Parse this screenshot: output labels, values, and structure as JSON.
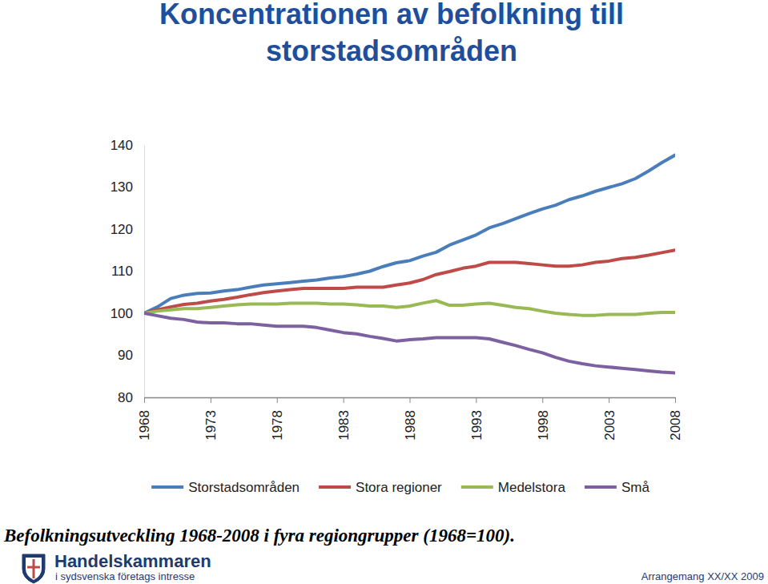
{
  "chart_data": {
    "type": "line",
    "title": "Koncentrationen av befolkning till storstadsområden",
    "subtitle": "Befolkningsutveckling 1968-2008 i fyra regiongrupper (1968=100).",
    "annotations": [
      "Handelskammaren",
      "i sydsvenska företags intresse",
      "Arrangemang XX/XX 2009"
    ],
    "x": [
      1968,
      1969,
      1970,
      1971,
      1972,
      1973,
      1974,
      1975,
      1976,
      1977,
      1978,
      1979,
      1980,
      1981,
      1982,
      1983,
      1984,
      1985,
      1986,
      1987,
      1988,
      1989,
      1990,
      1991,
      1992,
      1993,
      1994,
      1995,
      1996,
      1997,
      1998,
      1999,
      2000,
      2001,
      2002,
      2003,
      2004,
      2005,
      2006,
      2007,
      2008
    ],
    "xlim": [
      1968,
      2008
    ],
    "xticks": [
      1968,
      1973,
      1978,
      1983,
      1988,
      1993,
      1998,
      2003,
      2008
    ],
    "ylim": [
      80,
      140
    ],
    "yticks": [
      80,
      90,
      100,
      110,
      120,
      130,
      140
    ],
    "grid": false,
    "legend": "bottom",
    "series": [
      {
        "name": "Storstadsområden",
        "color": "#4a7ebb",
        "values": [
          100,
          101.5,
          103.5,
          104.3,
          104.7,
          104.8,
          105.3,
          105.6,
          106.2,
          106.7,
          107.0,
          107.3,
          107.6,
          107.9,
          108.4,
          108.7,
          109.3,
          110.0,
          111.1,
          112.0,
          112.5,
          113.6,
          114.5,
          116.2,
          117.4,
          118.6,
          120.3,
          121.3,
          122.5,
          123.7,
          124.8,
          125.7,
          127.0,
          127.9,
          129.0,
          129.9,
          130.8,
          132.0,
          133.8,
          135.8,
          137.6
        ]
      },
      {
        "name": "Stora regioner",
        "color": "#be4b48",
        "values": [
          100,
          100.8,
          101.5,
          102.1,
          102.4,
          102.9,
          103.3,
          103.8,
          104.4,
          104.9,
          105.3,
          105.6,
          105.9,
          105.9,
          105.9,
          105.9,
          106.2,
          106.2,
          106.2,
          106.7,
          107.2,
          108.0,
          109.2,
          109.9,
          110.7,
          111.2,
          112.1,
          112.1,
          112.1,
          111.8,
          111.5,
          111.2,
          111.2,
          111.5,
          112.1,
          112.4,
          113.0,
          113.3,
          113.8,
          114.4,
          115.0
        ]
      },
      {
        "name": "Medelstora",
        "color": "#98b954",
        "values": [
          100,
          100.5,
          100.8,
          101.1,
          101.1,
          101.4,
          101.7,
          102.0,
          102.2,
          102.2,
          102.2,
          102.4,
          102.4,
          102.4,
          102.2,
          102.2,
          102.0,
          101.7,
          101.7,
          101.4,
          101.7,
          102.4,
          103.0,
          101.9,
          101.9,
          102.2,
          102.4,
          101.9,
          101.4,
          101.1,
          100.5,
          100.0,
          99.7,
          99.5,
          99.5,
          99.7,
          99.7,
          99.7,
          100.0,
          100.2,
          100.2
        ]
      },
      {
        "name": "Små",
        "color": "#7d60a0",
        "values": [
          100,
          99.4,
          98.8,
          98.5,
          97.9,
          97.7,
          97.7,
          97.5,
          97.5,
          97.2,
          96.9,
          96.9,
          96.9,
          96.6,
          96.0,
          95.4,
          95.1,
          94.5,
          94.0,
          93.4,
          93.7,
          93.9,
          94.2,
          94.2,
          94.2,
          94.2,
          93.9,
          93.1,
          92.3,
          91.4,
          90.6,
          89.5,
          88.6,
          88.0,
          87.5,
          87.2,
          86.9,
          86.6,
          86.3,
          86.0,
          85.8
        ]
      }
    ]
  }
}
